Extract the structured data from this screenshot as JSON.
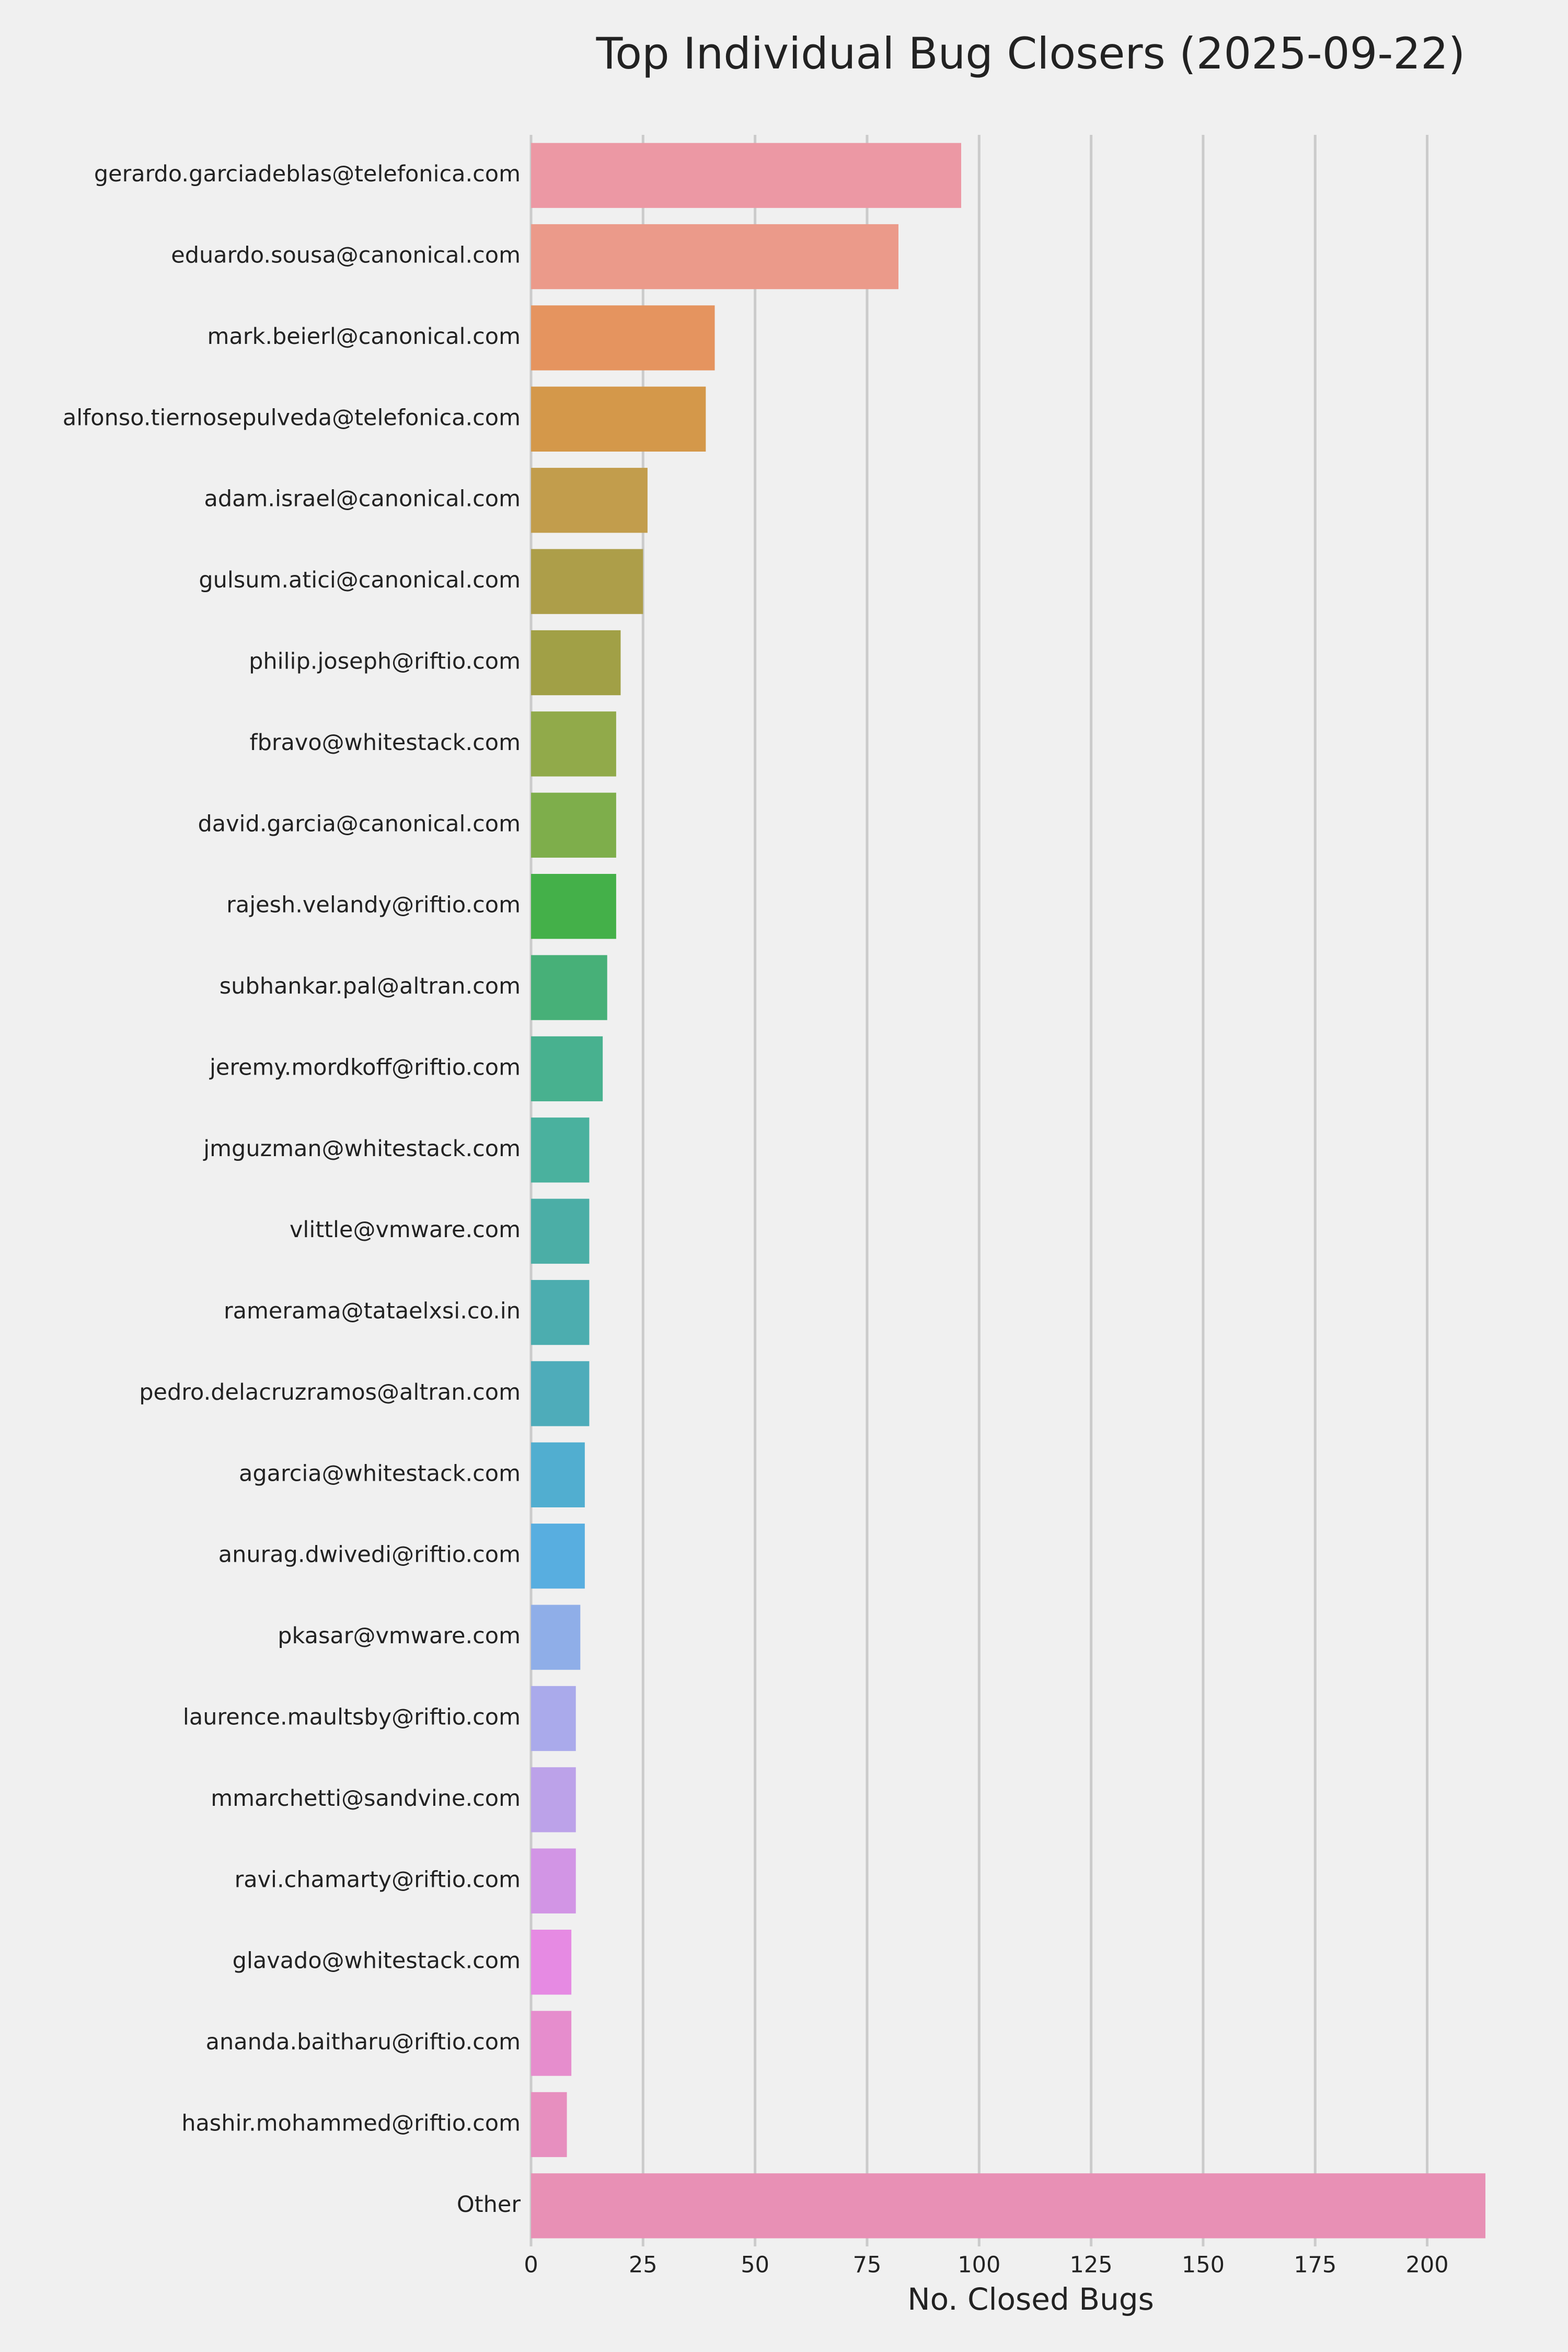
{
  "chart_data": {
    "type": "bar",
    "orientation": "horizontal",
    "title": "Top Individual Bug Closers (2025-09-22)",
    "x_label": "No. Closed Bugs",
    "categories": [
      "gerardo.garciadeblas@telefonica.com",
      "eduardo.sousa@canonical.com",
      "mark.beierl@canonical.com",
      "alfonso.tiernosepulveda@telefonica.com",
      "adam.israel@canonical.com",
      "gulsum.atici@canonical.com",
      "philip.joseph@riftio.com",
      "fbravo@whitestack.com",
      "david.garcia@canonical.com",
      "rajesh.velandy@riftio.com",
      "subhankar.pal@altran.com",
      "jeremy.mordkoff@riftio.com",
      "jmguzman@whitestack.com",
      "vlittle@vmware.com",
      "ramerama@tataelxsi.co.in",
      "pedro.delacruzramos@altran.com",
      "agarcia@whitestack.com",
      "anurag.dwivedi@riftio.com",
      "pkasar@vmware.com",
      "laurence.maultsby@riftio.com",
      "mmarchetti@sandvine.com",
      "ravi.chamarty@riftio.com",
      "glavado@whitestack.com",
      "ananda.baitharu@riftio.com",
      "hashir.mohammed@riftio.com",
      "Other"
    ],
    "values": [
      96,
      82,
      41,
      39,
      26,
      25,
      20,
      19,
      19,
      19,
      17,
      16,
      13,
      13,
      13,
      13,
      12,
      12,
      11,
      10,
      10,
      10,
      9,
      9,
      8,
      213
    ],
    "colors": [
      "#ec98a4",
      "#eb9a8a",
      "#e5945f",
      "#d4984a",
      "#c29d4c",
      "#ad9e49",
      "#a1a046",
      "#91aa4a",
      "#7eae4b",
      "#44b049",
      "#47b078",
      "#48b18f",
      "#4ab19e",
      "#4baea6",
      "#4cadaf",
      "#4eacba",
      "#51aed0",
      "#58aee0",
      "#8faee8",
      "#aaaaeb",
      "#bca2e9",
      "#d295e5",
      "#e68ae3",
      "#e68dcd",
      "#e78fbf",
      "#e890b5"
    ],
    "xlim": [
      0,
      213
    ],
    "xticks": [
      0,
      25,
      50,
      75,
      100,
      125,
      150,
      175,
      200
    ],
    "grid": true
  }
}
